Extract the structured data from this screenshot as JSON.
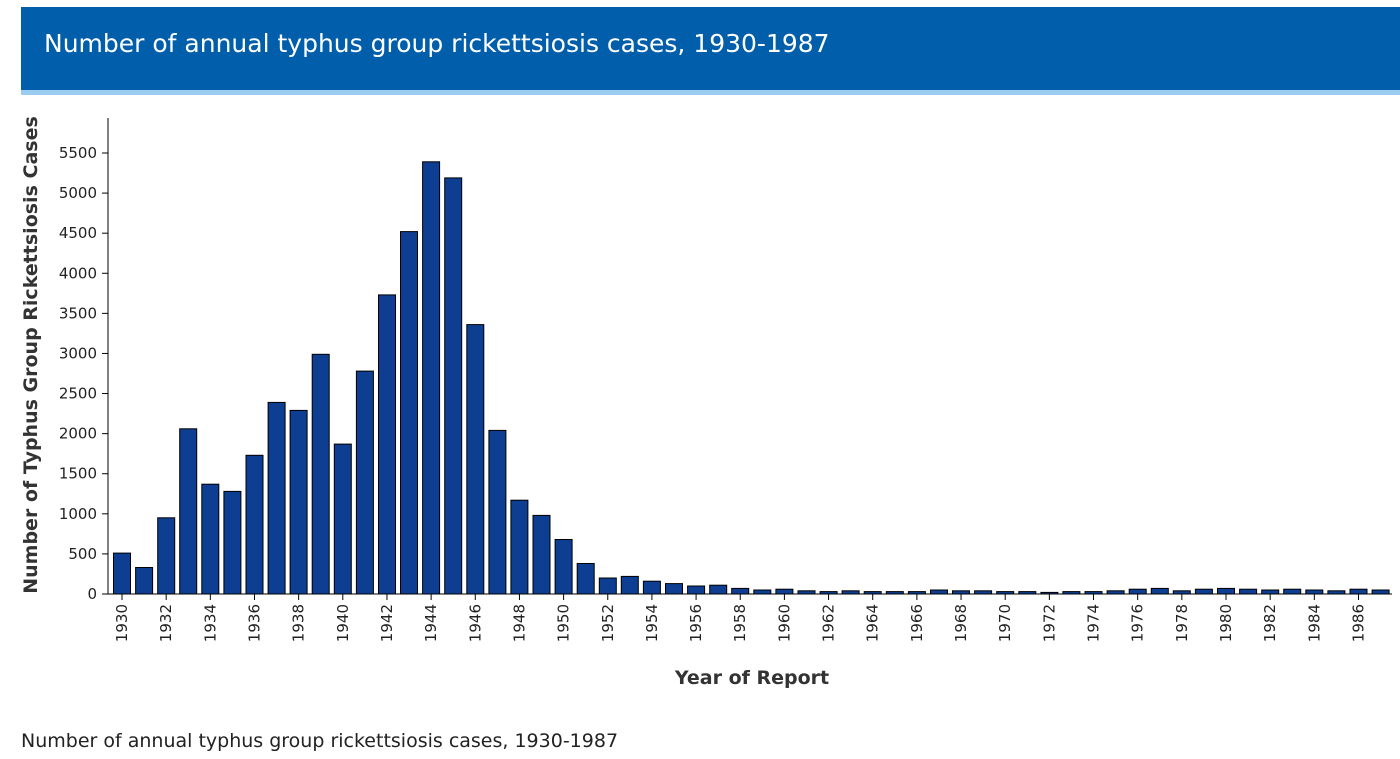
{
  "header": {
    "title": "Number of annual typhus group rickettsiosis cases, 1930-1987"
  },
  "caption": "Number of annual typhus group rickettsiosis cases, 1930-1987",
  "colors": {
    "header_bg": "#005eaa",
    "header_accent": "#9ccbf0",
    "bar_fill": "#0d3e91",
    "bar_stroke": "#000000"
  },
  "chart_data": {
    "type": "bar",
    "title": "",
    "xlabel": "Year of Report",
    "ylabel": "Number of Typhus Group Rickettsiosis Cases",
    "ylim": [
      0,
      5800
    ],
    "yticks": [
      0,
      500,
      1000,
      1500,
      2000,
      2500,
      3000,
      3500,
      4000,
      4500,
      5000,
      5500
    ],
    "categories": [
      "1930",
      "1931",
      "1932",
      "1933",
      "1934",
      "1935",
      "1936",
      "1937",
      "1938",
      "1939",
      "1940",
      "1941",
      "1942",
      "1943",
      "1944",
      "1945",
      "1946",
      "1947",
      "1948",
      "1949",
      "1950",
      "1951",
      "1952",
      "1953",
      "1954",
      "1955",
      "1956",
      "1957",
      "1958",
      "1959",
      "1960",
      "1961",
      "1962",
      "1963",
      "1964",
      "1965",
      "1966",
      "1967",
      "1968",
      "1969",
      "1970",
      "1971",
      "1972",
      "1973",
      "1974",
      "1975",
      "1976",
      "1977",
      "1978",
      "1979",
      "1980",
      "1981",
      "1982",
      "1983",
      "1984",
      "1985",
      "1986",
      "1987"
    ],
    "tick_labels": [
      "1930",
      "1932",
      "1934",
      "1936",
      "1938",
      "1940",
      "1942",
      "1944",
      "1946",
      "1948",
      "1950",
      "1952",
      "1954",
      "1956",
      "1958",
      "1960",
      "1962",
      "1964",
      "1966",
      "1968",
      "1970",
      "1972",
      "1974",
      "1976",
      "1978",
      "1980",
      "1982",
      "1984",
      "1986"
    ],
    "values": [
      510,
      330,
      950,
      2060,
      1370,
      1280,
      1730,
      2390,
      2290,
      2990,
      1870,
      2780,
      3730,
      4520,
      5390,
      5190,
      3360,
      2040,
      1170,
      980,
      680,
      380,
      200,
      220,
      160,
      130,
      100,
      110,
      70,
      50,
      60,
      40,
      30,
      40,
      30,
      30,
      30,
      50,
      40,
      40,
      30,
      30,
      20,
      30,
      30,
      40,
      60,
      70,
      40,
      60,
      70,
      60,
      50,
      60,
      50,
      40,
      60,
      50
    ],
    "grid": false,
    "legend": "none"
  }
}
